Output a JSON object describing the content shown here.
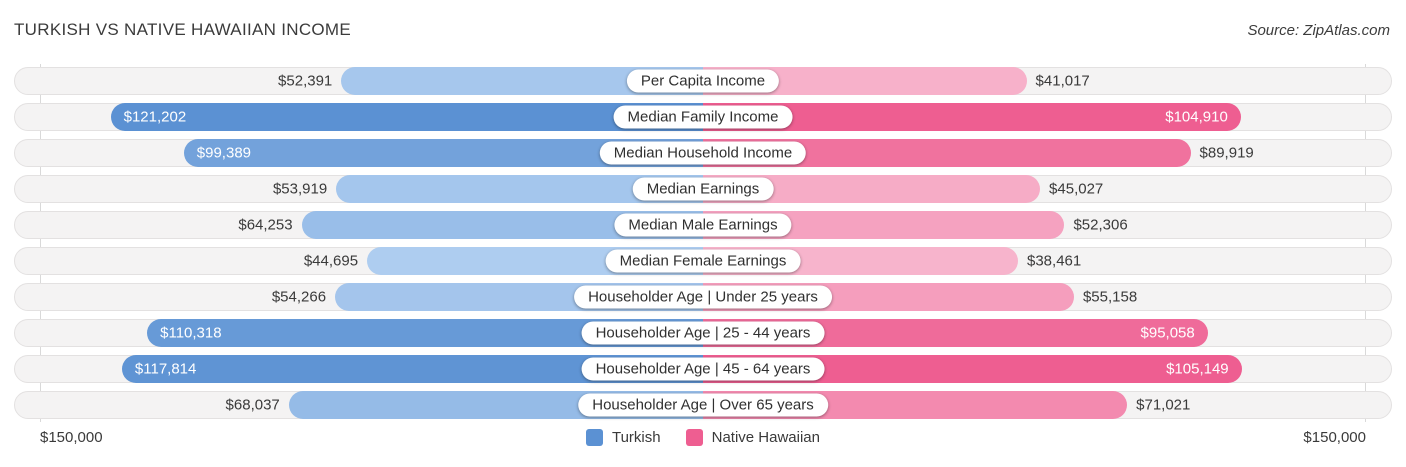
{
  "header": {
    "title": "TURKISH VS NATIVE HAWAIIAN INCOME",
    "source": "Source: ZipAtlas.com"
  },
  "chart_data": {
    "type": "bar",
    "variant": "diverging-horizontal",
    "title": "TURKISH VS NATIVE HAWAIIAN INCOME",
    "axis_max": 150000,
    "axis_label_left": "$150,000",
    "axis_label_right": "$150,000",
    "legend_position": "bottom-center",
    "categories": [
      "Per Capita Income",
      "Median Family Income",
      "Median Household Income",
      "Median Earnings",
      "Median Male Earnings",
      "Median Female Earnings",
      "Householder Age | Under 25 years",
      "Householder Age | 25 - 44 years",
      "Householder Age | 45 - 64 years",
      "Householder Age | Over 65 years"
    ],
    "series": [
      {
        "name": "Turkish",
        "side": "left",
        "color_light": "#aecdf0",
        "color_dark": "#5b91d3",
        "values": [
          52391,
          121202,
          99389,
          53919,
          64253,
          44695,
          54266,
          110318,
          117814,
          68037
        ],
        "display": [
          "$52,391",
          "$121,202",
          "$99,389",
          "$53,919",
          "$64,253",
          "$44,695",
          "$54,266",
          "$110,318",
          "$117,814",
          "$68,037"
        ]
      },
      {
        "name": "Native Hawaiian",
        "side": "right",
        "color_light": "#f7b4cc",
        "color_dark": "#ee5e91",
        "values": [
          41017,
          104910,
          89919,
          45027,
          52306,
          38461,
          55158,
          95058,
          105149,
          71021
        ],
        "display": [
          "$41,017",
          "$104,910",
          "$89,919",
          "$45,027",
          "$52,306",
          "$38,461",
          "$55,158",
          "$95,058",
          "$105,149",
          "$71,021"
        ]
      }
    ]
  }
}
